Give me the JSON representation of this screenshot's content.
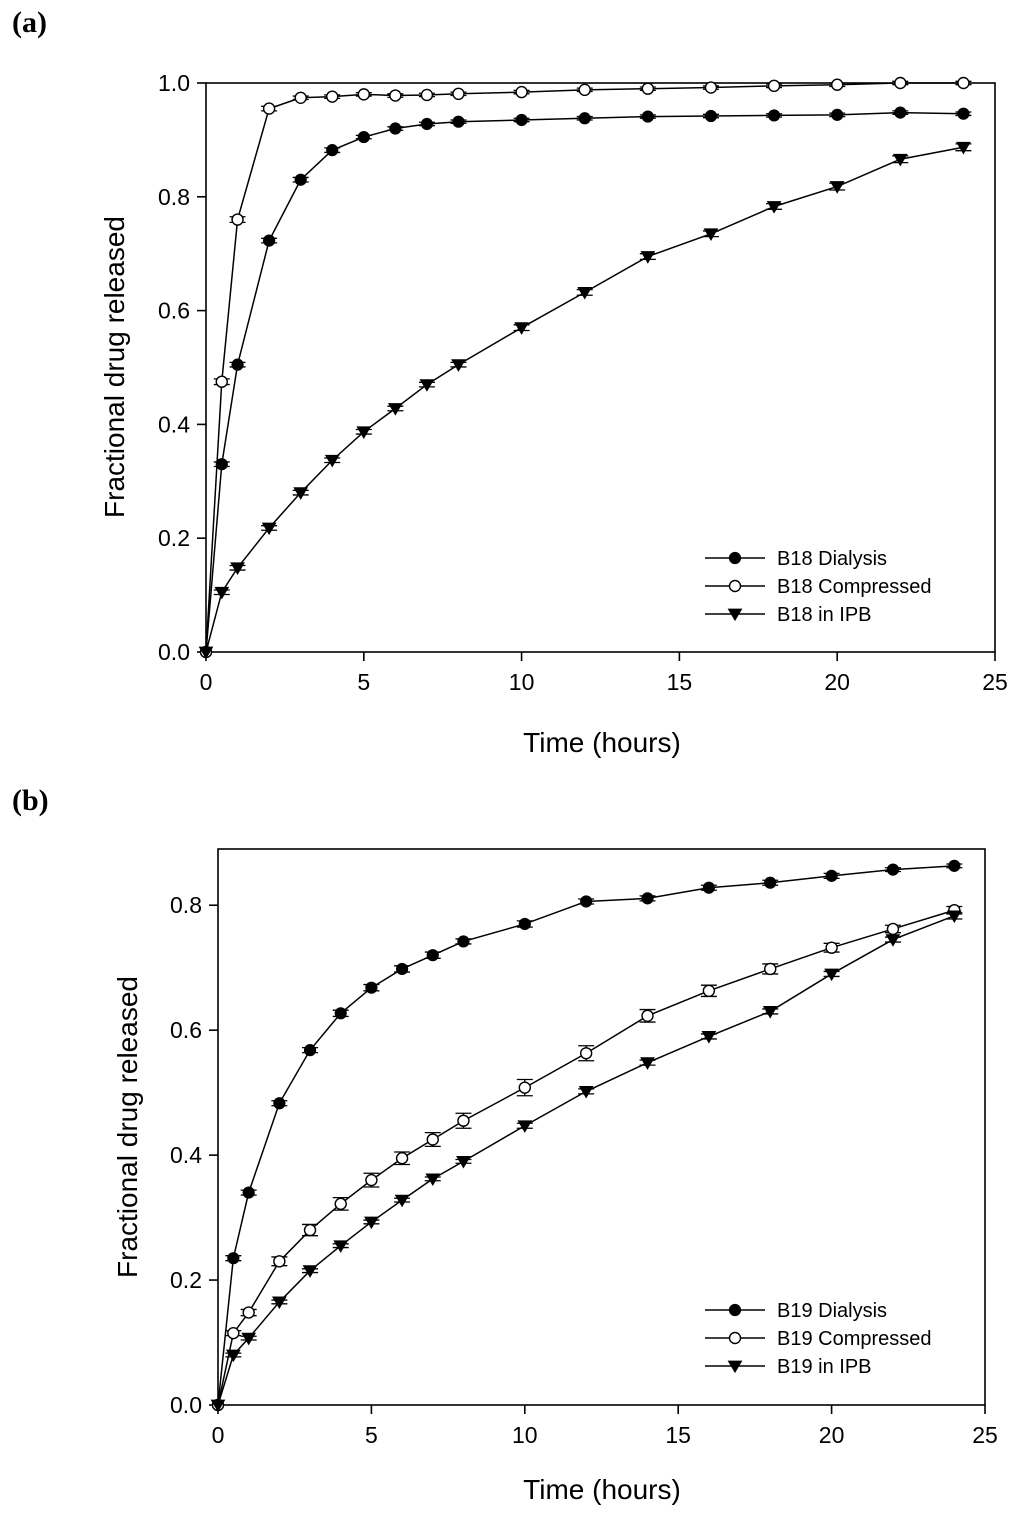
{
  "chart_data": [
    {
      "type": "line",
      "panel_label": "(a)",
      "xlabel": "Time (hours)",
      "ylabel": "Fractional drug released",
      "xlim": [
        0,
        25
      ],
      "ylim": [
        0,
        1.0
      ],
      "xticks": [
        0,
        5,
        10,
        15,
        20,
        25
      ],
      "yticks": [
        0.0,
        0.2,
        0.4,
        0.6,
        0.8,
        1.0
      ],
      "xtick_labels": [
        "0",
        "5",
        "10",
        "15",
        "20",
        "25"
      ],
      "ytick_labels": [
        "0.0",
        "0.2",
        "0.4",
        "0.6",
        "0.8",
        "1.0"
      ],
      "legend_position": "bottom-right",
      "series": [
        {
          "name": "B18 Dialysis",
          "marker": "filled-circle",
          "x": [
            0,
            0.5,
            1,
            2,
            3,
            4,
            5,
            6,
            7,
            8,
            10,
            12,
            14,
            16,
            18,
            20,
            22,
            24
          ],
          "y": [
            0.0,
            0.33,
            0.505,
            0.723,
            0.83,
            0.882,
            0.905,
            0.92,
            0.928,
            0.932,
            0.935,
            0.938,
            0.941,
            0.942,
            0.943,
            0.944,
            0.948,
            0.946
          ],
          "err": [
            0,
            0.004,
            0.004,
            0.004,
            0.004,
            0.004,
            0.003,
            0.003,
            0.003,
            0.003,
            0.003,
            0.003,
            0.003,
            0.003,
            0.003,
            0.003,
            0.003,
            0.003
          ]
        },
        {
          "name": "B18 Compressed",
          "marker": "open-circle",
          "x": [
            0,
            0.5,
            1,
            2,
            3,
            4,
            5,
            6,
            7,
            8,
            10,
            12,
            14,
            16,
            18,
            20,
            22,
            24
          ],
          "y": [
            0.0,
            0.475,
            0.76,
            0.955,
            0.974,
            0.976,
            0.98,
            0.978,
            0.979,
            0.981,
            0.984,
            0.988,
            0.99,
            0.992,
            0.995,
            0.997,
            1.0,
            1.0
          ],
          "err": [
            0,
            0.005,
            0.005,
            0.004,
            0.003,
            0.003,
            0.003,
            0.003,
            0.003,
            0.003,
            0.003,
            0.003,
            0.003,
            0.003,
            0.003,
            0.003,
            0.003,
            0.003
          ]
        },
        {
          "name": "B18 in IPB",
          "marker": "filled-triangle-down",
          "x": [
            0,
            0.5,
            1,
            2,
            3,
            4,
            5,
            6,
            7,
            8,
            10,
            12,
            14,
            16,
            18,
            20,
            22,
            24
          ],
          "y": [
            0.0,
            0.105,
            0.148,
            0.218,
            0.28,
            0.337,
            0.387,
            0.428,
            0.47,
            0.505,
            0.57,
            0.632,
            0.695,
            0.735,
            0.783,
            0.818,
            0.866,
            0.887
          ],
          "err": [
            0,
            0.004,
            0.004,
            0.004,
            0.004,
            0.004,
            0.004,
            0.004,
            0.004,
            0.004,
            0.005,
            0.005,
            0.005,
            0.005,
            0.005,
            0.006,
            0.006,
            0.006
          ]
        }
      ]
    },
    {
      "type": "line",
      "panel_label": "(b)",
      "xlabel": "Time (hours)",
      "ylabel": "Fractional drug released",
      "xlim": [
        0,
        25
      ],
      "ylim": [
        0,
        0.89
      ],
      "xticks": [
        0,
        5,
        10,
        15,
        20,
        25
      ],
      "yticks": [
        0.0,
        0.2,
        0.4,
        0.6,
        0.8
      ],
      "xtick_labels": [
        "0",
        "5",
        "10",
        "15",
        "20",
        "25"
      ],
      "ytick_labels": [
        "0.0",
        "0.2",
        "0.4",
        "0.6",
        "0.8"
      ],
      "legend_position": "bottom-right",
      "series": [
        {
          "name": "B19 Dialysis",
          "marker": "filled-circle",
          "x": [
            0,
            0.5,
            1,
            2,
            3,
            4,
            5,
            6,
            7,
            8,
            10,
            12,
            14,
            16,
            18,
            20,
            22,
            24
          ],
          "y": [
            0.0,
            0.235,
            0.34,
            0.483,
            0.568,
            0.627,
            0.668,
            0.698,
            0.72,
            0.742,
            0.77,
            0.806,
            0.811,
            0.828,
            0.836,
            0.847,
            0.857,
            0.863
          ],
          "err": [
            0,
            0.004,
            0.004,
            0.004,
            0.004,
            0.005,
            0.005,
            0.005,
            0.005,
            0.004,
            0.005,
            0.004,
            0.004,
            0.004,
            0.004,
            0.004,
            0.003,
            0.003
          ]
        },
        {
          "name": "B19 Compressed",
          "marker": "open-circle",
          "x": [
            0,
            0.5,
            1,
            2,
            3,
            4,
            5,
            6,
            7,
            8,
            10,
            12,
            14,
            16,
            18,
            20,
            22,
            24
          ],
          "y": [
            0.0,
            0.115,
            0.148,
            0.23,
            0.28,
            0.322,
            0.36,
            0.395,
            0.425,
            0.455,
            0.508,
            0.563,
            0.623,
            0.663,
            0.698,
            0.732,
            0.762,
            0.792
          ],
          "err": [
            0,
            0.004,
            0.005,
            0.007,
            0.009,
            0.01,
            0.011,
            0.01,
            0.011,
            0.012,
            0.013,
            0.012,
            0.01,
            0.009,
            0.008,
            0.007,
            0.006,
            0.006
          ]
        },
        {
          "name": "B19 in IPB",
          "marker": "filled-triangle-down",
          "x": [
            0,
            0.5,
            1,
            2,
            3,
            4,
            5,
            6,
            7,
            8,
            10,
            12,
            14,
            16,
            18,
            20,
            22,
            24
          ],
          "y": [
            0.0,
            0.08,
            0.107,
            0.165,
            0.215,
            0.255,
            0.293,
            0.328,
            0.362,
            0.39,
            0.447,
            0.502,
            0.548,
            0.59,
            0.63,
            0.69,
            0.745,
            0.783
          ],
          "err": [
            0,
            0.003,
            0.003,
            0.003,
            0.003,
            0.003,
            0.003,
            0.003,
            0.003,
            0.003,
            0.004,
            0.004,
            0.004,
            0.004,
            0.004,
            0.004,
            0.004,
            0.005
          ]
        }
      ]
    }
  ]
}
